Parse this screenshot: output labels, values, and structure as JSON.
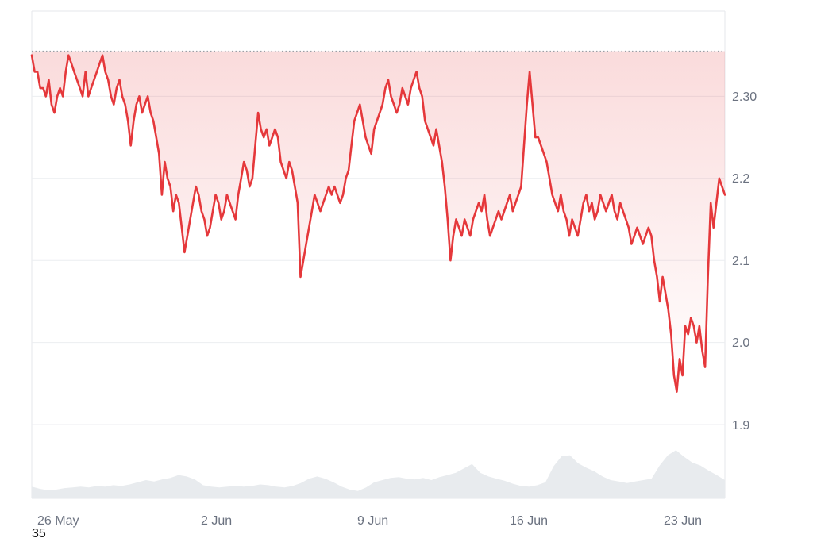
{
  "chart_data": {
    "type": "area",
    "x_tick_labels": [
      "26 May",
      "2 Jun",
      "9 Jun",
      "16 Jun",
      "23 Jun"
    ],
    "y_tick_labels": [
      "1.9",
      "2.0",
      "2.1",
      "2.2",
      "2.30"
    ],
    "ylim": [
      1.83,
      2.4
    ],
    "reference_line_value": 2.355,
    "grid": true,
    "line_color": "#e5383b",
    "fill_color": "#e5383b",
    "volume_color": "#e8ebee",
    "series": [
      {
        "values": [
          2.35,
          2.33,
          2.33,
          2.31,
          2.31,
          2.3,
          2.32,
          2.29,
          2.28,
          2.3,
          2.31,
          2.3,
          2.33,
          2.35,
          2.34,
          2.33,
          2.32,
          2.31,
          2.3,
          2.33,
          2.3,
          2.31,
          2.32,
          2.33,
          2.34,
          2.35,
          2.33,
          2.32,
          2.3,
          2.29,
          2.31,
          2.32,
          2.3,
          2.29,
          2.27,
          2.24,
          2.27,
          2.29,
          2.3,
          2.28,
          2.29,
          2.3,
          2.28,
          2.27,
          2.25,
          2.23,
          2.18,
          2.22,
          2.2,
          2.19,
          2.16,
          2.18,
          2.17,
          2.14,
          2.11,
          2.13,
          2.15,
          2.17,
          2.19,
          2.18,
          2.16,
          2.15,
          2.13,
          2.14,
          2.16,
          2.18,
          2.17,
          2.15,
          2.16,
          2.18,
          2.17,
          2.16,
          2.15,
          2.18,
          2.2,
          2.22,
          2.21,
          2.19,
          2.2,
          2.24,
          2.28,
          2.26,
          2.25,
          2.26,
          2.24,
          2.25,
          2.26,
          2.25,
          2.22,
          2.21,
          2.2,
          2.22,
          2.21,
          2.19,
          2.17,
          2.08,
          2.1,
          2.12,
          2.14,
          2.16,
          2.18,
          2.17,
          2.16,
          2.17,
          2.18,
          2.19,
          2.18,
          2.19,
          2.18,
          2.17,
          2.18,
          2.2,
          2.21,
          2.24,
          2.27,
          2.28,
          2.29,
          2.27,
          2.25,
          2.24,
          2.23,
          2.26,
          2.27,
          2.28,
          2.29,
          2.31,
          2.32,
          2.3,
          2.29,
          2.28,
          2.29,
          2.31,
          2.3,
          2.29,
          2.31,
          2.32,
          2.33,
          2.31,
          2.3,
          2.27,
          2.26,
          2.25,
          2.24,
          2.26,
          2.24,
          2.22,
          2.19,
          2.15,
          2.1,
          2.13,
          2.15,
          2.14,
          2.13,
          2.15,
          2.14,
          2.13,
          2.15,
          2.16,
          2.17,
          2.16,
          2.18,
          2.15,
          2.13,
          2.14,
          2.15,
          2.16,
          2.15,
          2.16,
          2.17,
          2.18,
          2.16,
          2.17,
          2.18,
          2.19,
          2.24,
          2.29,
          2.33,
          2.29,
          2.25,
          2.25,
          2.24,
          2.23,
          2.22,
          2.2,
          2.18,
          2.17,
          2.16,
          2.18,
          2.16,
          2.15,
          2.13,
          2.15,
          2.14,
          2.13,
          2.15,
          2.17,
          2.18,
          2.16,
          2.17,
          2.15,
          2.16,
          2.18,
          2.17,
          2.16,
          2.17,
          2.18,
          2.16,
          2.15,
          2.17,
          2.16,
          2.15,
          2.14,
          2.12,
          2.13,
          2.14,
          2.13,
          2.12,
          2.13,
          2.14,
          2.13,
          2.1,
          2.08,
          2.05,
          2.08,
          2.06,
          2.04,
          2.01,
          1.96,
          1.94,
          1.98,
          1.96,
          2.02,
          2.01,
          2.03,
          2.02,
          2.0,
          2.02,
          1.99,
          1.97,
          2.08,
          2.17,
          2.14,
          2.17,
          2.2,
          2.19,
          2.18
        ]
      }
    ],
    "volume": [
      0.16,
      0.13,
      0.11,
      0.12,
      0.14,
      0.15,
      0.16,
      0.15,
      0.17,
      0.16,
      0.18,
      0.17,
      0.19,
      0.22,
      0.25,
      0.23,
      0.26,
      0.28,
      0.32,
      0.3,
      0.26,
      0.18,
      0.16,
      0.15,
      0.16,
      0.17,
      0.16,
      0.17,
      0.19,
      0.18,
      0.16,
      0.15,
      0.17,
      0.21,
      0.27,
      0.3,
      0.27,
      0.22,
      0.16,
      0.12,
      0.1,
      0.15,
      0.22,
      0.25,
      0.28,
      0.29,
      0.27,
      0.26,
      0.28,
      0.25,
      0.29,
      0.32,
      0.35,
      0.41,
      0.47,
      0.35,
      0.3,
      0.27,
      0.24,
      0.2,
      0.17,
      0.16,
      0.18,
      0.22,
      0.44,
      0.58,
      0.59,
      0.48,
      0.42,
      0.37,
      0.3,
      0.25,
      0.23,
      0.21,
      0.23,
      0.25,
      0.27,
      0.45,
      0.59,
      0.66,
      0.57,
      0.49,
      0.45,
      0.38,
      0.32,
      0.25
    ]
  }
}
